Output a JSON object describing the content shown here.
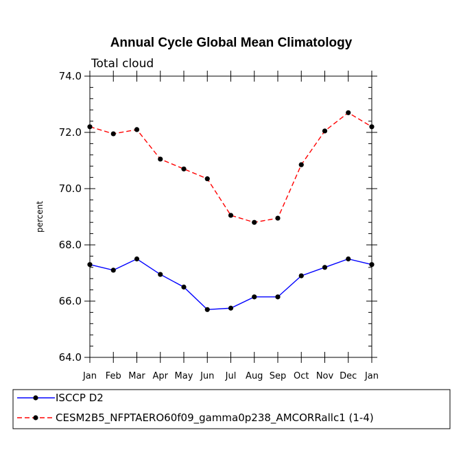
{
  "chart_data": {
    "type": "line",
    "title": "Annual Cycle Global Mean Climatology",
    "subtitle": "Total cloud",
    "xlabel": "",
    "ylabel": "percent",
    "categories": [
      "Jan",
      "Feb",
      "Mar",
      "Apr",
      "May",
      "Jun",
      "Jul",
      "Aug",
      "Sep",
      "Oct",
      "Nov",
      "Dec",
      "Jan"
    ],
    "ylim": [
      64.0,
      74.0
    ],
    "yticks": [
      "64.0",
      "66.0",
      "68.0",
      "70.0",
      "72.0",
      "74.0"
    ],
    "series": [
      {
        "name": "ISCCP D2",
        "color": "#0000ff",
        "dash": "solid",
        "values": [
          67.3,
          67.1,
          67.5,
          66.95,
          66.5,
          65.7,
          65.75,
          66.15,
          66.15,
          66.9,
          67.2,
          67.5,
          67.3
        ]
      },
      {
        "name": "CESM2B5_NFPTAERO60f09_gamma0p238_AMCORRallc1 (1-4)",
        "color": "#ff0000",
        "dash": "dashed",
        "values": [
          72.2,
          71.95,
          72.1,
          71.05,
          70.7,
          70.35,
          69.05,
          68.8,
          68.95,
          70.85,
          72.05,
          72.7,
          72.2
        ]
      }
    ],
    "legend_position": "bottom"
  }
}
